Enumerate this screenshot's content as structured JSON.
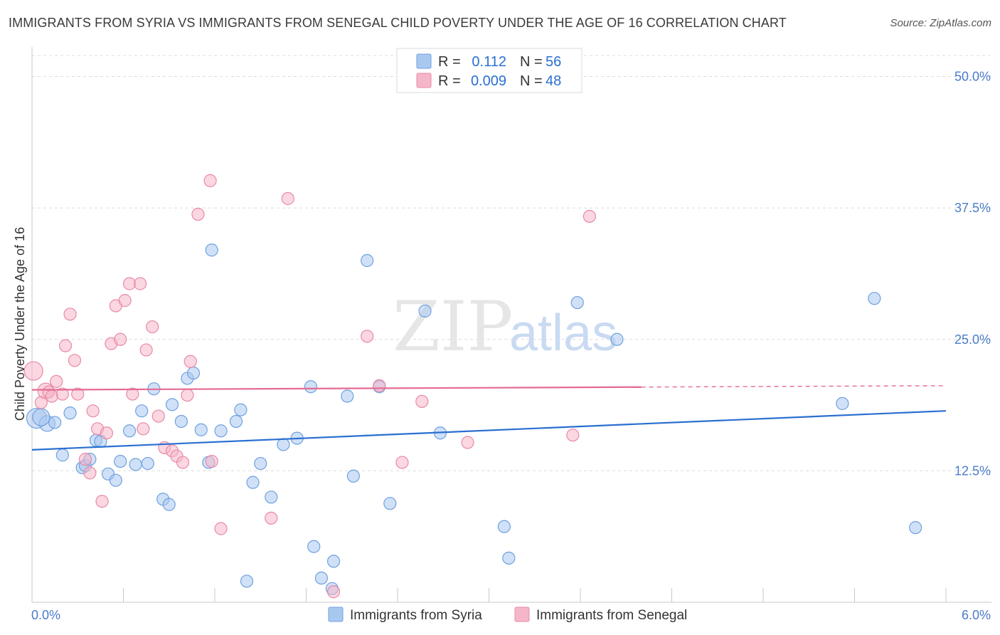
{
  "title": "IMMIGRANTS FROM SYRIA VS IMMIGRANTS FROM SENEGAL CHILD POVERTY UNDER THE AGE OF 16 CORRELATION CHART",
  "source": "Source: ZipAtlas.com",
  "watermark": {
    "part1": "ZIP",
    "part2": "atlas"
  },
  "chart_data": {
    "type": "scatter",
    "xlabel": "",
    "ylabel": "Child Poverty Under the Age of 16",
    "xlim": [
      0,
      6
    ],
    "ylim": [
      0,
      52
    ],
    "x_tick_labels": [
      {
        "value": 0,
        "label": "0.0%"
      },
      {
        "value": 6,
        "label": "6.0%"
      }
    ],
    "y_tick_labels": [
      {
        "value": 12.5,
        "label": "12.5%"
      },
      {
        "value": 25,
        "label": "25.0%"
      },
      {
        "value": 37.5,
        "label": "37.5%"
      },
      {
        "value": 50,
        "label": "50.0%"
      }
    ],
    "legend": {
      "position": "top-center",
      "r_label": "R =",
      "n_label": "N =",
      "rows": [
        {
          "name": "Immigrants from Syria",
          "r": "0.112",
          "n": "56"
        },
        {
          "name": "Immigrants from Senegal",
          "r": "0.009",
          "n": "48"
        }
      ]
    },
    "series": [
      {
        "name": "Immigrants from Syria",
        "color": "#a9c8f0",
        "stroke": "#6fa0e0",
        "line_color": "#2a6fd1",
        "trend": {
          "x0": 0,
          "y0": 14.5,
          "x1": 6,
          "y1": 18.2,
          "dashed_from": null
        },
        "points": [
          [
            0.03,
            17.5
          ],
          [
            0.1,
            17.0
          ],
          [
            0.25,
            18.0
          ],
          [
            0.33,
            12.8
          ],
          [
            0.2,
            14.0
          ],
          [
            0.35,
            13.0
          ],
          [
            0.38,
            13.6
          ],
          [
            0.42,
            15.4
          ],
          [
            0.45,
            15.3
          ],
          [
            0.5,
            12.2
          ],
          [
            0.55,
            11.6
          ],
          [
            0.58,
            13.4
          ],
          [
            0.64,
            16.3
          ],
          [
            0.68,
            13.1
          ],
          [
            0.72,
            18.2
          ],
          [
            0.76,
            13.2
          ],
          [
            0.8,
            20.3
          ],
          [
            0.86,
            9.8
          ],
          [
            0.9,
            9.3
          ],
          [
            0.92,
            18.8
          ],
          [
            0.98,
            17.2
          ],
          [
            1.02,
            21.3
          ],
          [
            1.06,
            21.8
          ],
          [
            1.11,
            16.4
          ],
          [
            1.16,
            13.3
          ],
          [
            1.18,
            33.5
          ],
          [
            1.24,
            16.3
          ],
          [
            1.34,
            17.2
          ],
          [
            1.37,
            18.3
          ],
          [
            1.41,
            2.0
          ],
          [
            1.45,
            11.4
          ],
          [
            1.5,
            13.2
          ],
          [
            1.57,
            10.0
          ],
          [
            1.65,
            15.0
          ],
          [
            1.74,
            15.6
          ],
          [
            1.83,
            20.5
          ],
          [
            1.85,
            5.3
          ],
          [
            1.9,
            2.3
          ],
          [
            1.97,
            1.3
          ],
          [
            1.98,
            3.9
          ],
          [
            2.07,
            19.6
          ],
          [
            2.11,
            12.0
          ],
          [
            2.2,
            32.5
          ],
          [
            2.28,
            20.5
          ],
          [
            2.35,
            9.4
          ],
          [
            2.58,
            27.7
          ],
          [
            2.68,
            16.1
          ],
          [
            3.1,
            7.2
          ],
          [
            3.13,
            4.2
          ],
          [
            3.58,
            28.5
          ],
          [
            3.84,
            25.0
          ],
          [
            5.32,
            18.9
          ],
          [
            5.53,
            28.9
          ],
          [
            5.8,
            7.1
          ],
          [
            0.15,
            17.1
          ],
          [
            0.06,
            17.6
          ]
        ]
      },
      {
        "name": "Immigrants from Senegal",
        "color": "#f5b6c8",
        "stroke": "#e98aa6",
        "line_color": "#e56b92",
        "trend": {
          "x0": 0,
          "y0": 20.2,
          "x1": 6,
          "y1": 20.6,
          "dashed_from": 4.0
        },
        "points": [
          [
            0.01,
            22.0
          ],
          [
            0.06,
            19.0
          ],
          [
            0.09,
            20.1
          ],
          [
            0.11,
            20.0
          ],
          [
            0.13,
            19.6
          ],
          [
            0.16,
            21.0
          ],
          [
            0.2,
            19.8
          ],
          [
            0.22,
            24.4
          ],
          [
            0.25,
            27.4
          ],
          [
            0.28,
            23.0
          ],
          [
            0.3,
            19.8
          ],
          [
            0.35,
            13.6
          ],
          [
            0.38,
            12.3
          ],
          [
            0.4,
            18.2
          ],
          [
            0.43,
            16.5
          ],
          [
            0.46,
            9.6
          ],
          [
            0.49,
            16.1
          ],
          [
            0.52,
            24.6
          ],
          [
            0.55,
            28.2
          ],
          [
            0.58,
            25.0
          ],
          [
            0.61,
            28.7
          ],
          [
            0.64,
            30.3
          ],
          [
            0.66,
            19.8
          ],
          [
            0.71,
            30.3
          ],
          [
            0.73,
            16.5
          ],
          [
            0.75,
            24.0
          ],
          [
            0.79,
            26.2
          ],
          [
            0.83,
            17.7
          ],
          [
            0.87,
            14.7
          ],
          [
            0.92,
            14.4
          ],
          [
            0.95,
            13.9
          ],
          [
            0.99,
            13.3
          ],
          [
            1.02,
            19.7
          ],
          [
            1.04,
            22.9
          ],
          [
            1.09,
            36.9
          ],
          [
            1.17,
            40.1
          ],
          [
            1.18,
            13.4
          ],
          [
            1.24,
            7.0
          ],
          [
            1.57,
            8.0
          ],
          [
            1.68,
            38.4
          ],
          [
            1.98,
            1.0
          ],
          [
            2.2,
            25.3
          ],
          [
            2.28,
            20.6
          ],
          [
            2.43,
            13.3
          ],
          [
            2.56,
            19.1
          ],
          [
            2.86,
            15.2
          ],
          [
            3.55,
            15.9
          ],
          [
            3.66,
            36.7
          ]
        ]
      }
    ]
  }
}
